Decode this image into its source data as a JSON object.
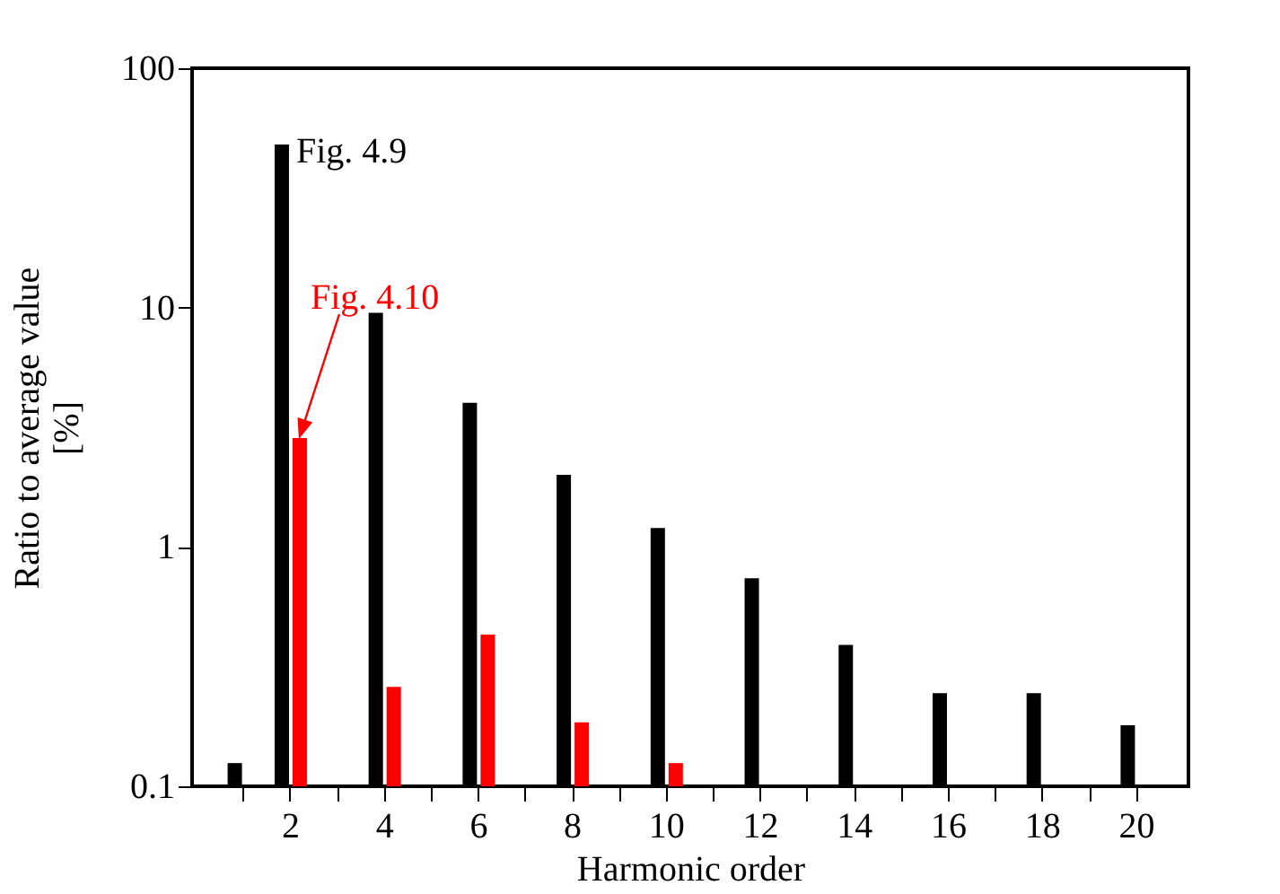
{
  "chart_data": {
    "type": "bar",
    "xlabel": "Harmonic order",
    "ylabel": "Ratio to average value [%]",
    "categories": [
      null,
      "2",
      null,
      "4",
      null,
      "6",
      null,
      "8",
      null,
      "10",
      null,
      "12",
      null,
      "14",
      null,
      "16",
      null,
      "18",
      null,
      "20"
    ],
    "series": [
      {
        "color": "#000000",
        "values": [
          0.125,
          48,
          null,
          9.5,
          null,
          4.0,
          null,
          2.0,
          null,
          1.2,
          null,
          0.74,
          null,
          0.39,
          null,
          0.245,
          null,
          0.245,
          null,
          0.18
        ]
      },
      {
        "color": "#ff0000",
        "values": [
          null,
          2.85,
          null,
          0.26,
          null,
          0.43,
          null,
          0.185,
          null,
          0.125,
          null,
          null,
          null,
          null,
          null,
          null,
          null,
          null,
          null,
          null
        ]
      }
    ],
    "log": "y",
    "ylim": [
      0.1,
      100
    ],
    "yticks": [
      0.1,
      1,
      10,
      100
    ],
    "grid": false,
    "annotations": [
      {
        "text": "Fig. 4.9",
        "x": "2",
        "y": 48
      },
      "Fig. 4.10"
    ]
  }
}
